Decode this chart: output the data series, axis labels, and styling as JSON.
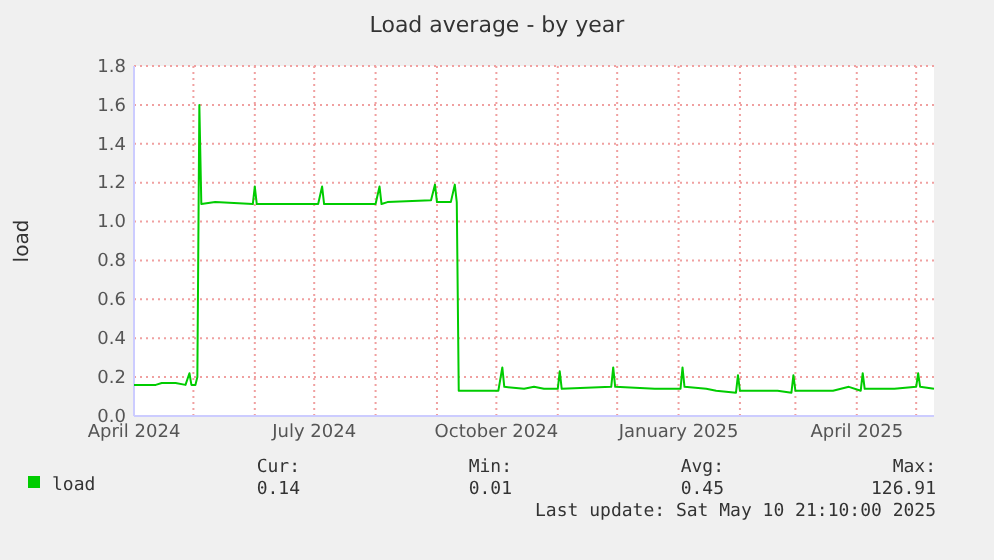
{
  "chart_data": {
    "type": "line",
    "title": "Load average - by year",
    "ylabel": "load",
    "x": [
      "2024-04-01",
      "2024-04-05",
      "2024-04-12",
      "2024-04-15",
      "2024-04-22",
      "2024-04-27",
      "2024-04-29",
      "2024-04-30",
      "2024-05-02",
      "2024-05-03",
      "2024-05-04",
      "2024-05-05",
      "2024-05-12",
      "2024-05-31",
      "2024-06-01",
      "2024-06-02",
      "2024-07-03",
      "2024-07-05",
      "2024-07-06",
      "2024-08-01",
      "2024-08-03",
      "2024-08-04",
      "2024-08-07",
      "2024-08-29",
      "2024-08-31",
      "2024-09-01",
      "2024-09-08",
      "2024-09-10",
      "2024-09-11",
      "2024-09-12",
      "2024-09-25",
      "2024-10-02",
      "2024-10-04",
      "2024-10-05",
      "2024-10-15",
      "2024-10-20",
      "2024-10-25",
      "2024-11-01",
      "2024-11-02",
      "2024-11-03",
      "2024-11-28",
      "2024-11-29",
      "2024-11-30",
      "2024-12-20",
      "2025-01-02",
      "2025-01-03",
      "2025-01-04",
      "2025-01-15",
      "2025-01-20",
      "2025-01-30",
      "2025-01-31",
      "2025-02-01",
      "2025-02-20",
      "2025-02-27",
      "2025-02-28",
      "2025-03-01",
      "2025-03-20",
      "2025-03-28",
      "2025-04-03",
      "2025-04-04",
      "2025-04-05",
      "2025-04-20",
      "2025-05-01",
      "2025-05-02",
      "2025-05-03",
      "2025-05-10"
    ],
    "series": [
      {
        "name": "load",
        "color": "#00cc00",
        "values": [
          0.16,
          0.16,
          0.16,
          0.17,
          0.17,
          0.16,
          0.22,
          0.16,
          0.16,
          0.2,
          1.6,
          1.09,
          1.1,
          1.09,
          1.18,
          1.09,
          1.09,
          1.18,
          1.09,
          1.09,
          1.18,
          1.09,
          1.1,
          1.11,
          1.19,
          1.1,
          1.1,
          1.19,
          1.1,
          0.13,
          0.13,
          0.13,
          0.25,
          0.15,
          0.14,
          0.15,
          0.14,
          0.14,
          0.23,
          0.14,
          0.15,
          0.25,
          0.15,
          0.14,
          0.14,
          0.25,
          0.15,
          0.14,
          0.13,
          0.12,
          0.21,
          0.13,
          0.13,
          0.12,
          0.21,
          0.13,
          0.13,
          0.15,
          0.13,
          0.22,
          0.14,
          0.14,
          0.15,
          0.22,
          0.15,
          0.14
        ]
      }
    ],
    "xlim": [
      "2024-04-01",
      "2025-05-10"
    ],
    "xticks": [
      {
        "value": "2024-04-01",
        "label": "April 2024"
      },
      {
        "value": "2024-05-01",
        "label": null
      },
      {
        "value": "2024-06-01",
        "label": null
      },
      {
        "value": "2024-07-01",
        "label": "July 2024"
      },
      {
        "value": "2024-08-01",
        "label": null
      },
      {
        "value": "2024-09-01",
        "label": null
      },
      {
        "value": "2024-10-01",
        "label": "October 2024"
      },
      {
        "value": "2024-11-01",
        "label": null
      },
      {
        "value": "2024-12-01",
        "label": null
      },
      {
        "value": "2025-01-01",
        "label": "January 2025"
      },
      {
        "value": "2025-02-01",
        "label": null
      },
      {
        "value": "2025-03-01",
        "label": null
      },
      {
        "value": "2025-04-01",
        "label": "April 2025"
      },
      {
        "value": "2025-05-01",
        "label": null
      }
    ],
    "ylim": [
      0,
      1.8
    ],
    "yticks": [
      {
        "value": 0,
        "label": "0.0"
      },
      {
        "value": 0.2,
        "label": "0.2"
      },
      {
        "value": 0.4,
        "label": "0.4"
      },
      {
        "value": 0.6,
        "label": "0.6"
      },
      {
        "value": 0.8,
        "label": "0.8"
      },
      {
        "value": 1,
        "label": "1.0"
      },
      {
        "value": 1.2,
        "label": "1.2"
      },
      {
        "value": 1.4,
        "label": "1.4"
      },
      {
        "value": 1.6,
        "label": "1.6"
      },
      {
        "value": 1.8,
        "label": "1.8"
      }
    ],
    "grid": true,
    "legend": "bottom",
    "marker": "none",
    "line_style": "solid",
    "annotations": [
      "Cur:",
      "Min:",
      "Avg:",
      "Max:",
      "0.14",
      "0.01",
      "0.45",
      "126.91",
      "Last update: Sat May 10 21:10:00 2025"
    ]
  }
}
